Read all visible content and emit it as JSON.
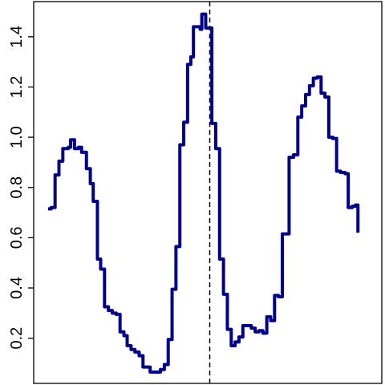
{
  "chart_data": {
    "type": "line",
    "title": "",
    "xlabel": "",
    "ylabel": "",
    "grid": false,
    "legend": "none",
    "xlim": [
      0,
      1
    ],
    "ylim": [
      0.02,
      1.54
    ],
    "yticks": [
      {
        "value": 0.2,
        "label": "0.2"
      },
      {
        "value": 0.4,
        "label": "0.4"
      },
      {
        "value": 0.6,
        "label": "0.6"
      },
      {
        "value": 0.8,
        "label": "0.8"
      },
      {
        "value": 1.0,
        "label": "1.0"
      },
      {
        "value": 1.2,
        "label": "1.2"
      },
      {
        "value": 1.4,
        "label": "1.4"
      }
    ],
    "vline": {
      "x": 0.5,
      "style": "dashed",
      "color": "#000000"
    },
    "series": [
      {
        "color": "#00008b",
        "step": true,
        "points": [
          [
            0.0,
            0.715
          ],
          [
            0.0095,
            0.72
          ],
          [
            0.0215,
            0.85
          ],
          [
            0.0335,
            0.905
          ],
          [
            0.0455,
            0.955
          ],
          [
            0.0625,
            0.96
          ],
          [
            0.0695,
            0.99
          ],
          [
            0.0815,
            0.955
          ],
          [
            0.094,
            0.96
          ],
          [
            0.1035,
            0.94
          ],
          [
            0.1185,
            0.875
          ],
          [
            0.1305,
            0.815
          ],
          [
            0.1395,
            0.745
          ],
          [
            0.1525,
            0.515
          ],
          [
            0.1625,
            0.475
          ],
          [
            0.1745,
            0.325
          ],
          [
            0.1865,
            0.31
          ],
          [
            0.1985,
            0.3
          ],
          [
            0.2105,
            0.295
          ],
          [
            0.2225,
            0.225
          ],
          [
            0.2345,
            0.21
          ],
          [
            0.2445,
            0.17
          ],
          [
            0.2565,
            0.155
          ],
          [
            0.2685,
            0.145
          ],
          [
            0.2815,
            0.13
          ],
          [
            0.2935,
            0.085
          ],
          [
            0.3155,
            0.065
          ],
          [
            0.3475,
            0.075
          ],
          [
            0.3595,
            0.095
          ],
          [
            0.3715,
            0.195
          ],
          [
            0.3835,
            0.395
          ],
          [
            0.3955,
            0.565
          ],
          [
            0.4075,
            0.97
          ],
          [
            0.4195,
            1.06
          ],
          [
            0.4315,
            1.29
          ],
          [
            0.4415,
            1.32
          ],
          [
            0.4495,
            1.44
          ],
          [
            0.4705,
            1.43
          ],
          [
            0.4755,
            1.49
          ],
          [
            0.4875,
            1.435
          ],
          [
            0.5065,
            1.055
          ],
          [
            0.5185,
            0.955
          ],
          [
            0.5305,
            0.515
          ],
          [
            0.5425,
            0.375
          ],
          [
            0.5545,
            0.235
          ],
          [
            0.5665,
            0.17
          ],
          [
            0.5785,
            0.185
          ],
          [
            0.5905,
            0.205
          ],
          [
            0.6025,
            0.25
          ],
          [
            0.6285,
            0.24
          ],
          [
            0.6405,
            0.225
          ],
          [
            0.6525,
            0.23
          ],
          [
            0.6645,
            0.22
          ],
          [
            0.6765,
            0.285
          ],
          [
            0.6885,
            0.27
          ],
          [
            0.7005,
            0.37
          ],
          [
            0.7125,
            0.365
          ],
          [
            0.7245,
            0.615
          ],
          [
            0.7455,
            0.92
          ],
          [
            0.7595,
            0.93
          ],
          [
            0.7725,
            1.08
          ],
          [
            0.7845,
            1.125
          ],
          [
            0.7965,
            1.17
          ],
          [
            0.8085,
            1.205
          ],
          [
            0.8205,
            1.235
          ],
          [
            0.8325,
            1.24
          ],
          [
            0.8445,
            1.175
          ],
          [
            0.8565,
            1.16
          ],
          [
            0.8685,
            1.0
          ],
          [
            0.8805,
            0.995
          ],
          [
            0.8925,
            0.865
          ],
          [
            0.9045,
            0.86
          ],
          [
            0.9185,
            0.855
          ],
          [
            0.9285,
            0.72
          ],
          [
            0.9405,
            0.725
          ],
          [
            0.9505,
            0.73
          ],
          [
            0.9585,
            0.62
          ]
        ]
      }
    ]
  }
}
